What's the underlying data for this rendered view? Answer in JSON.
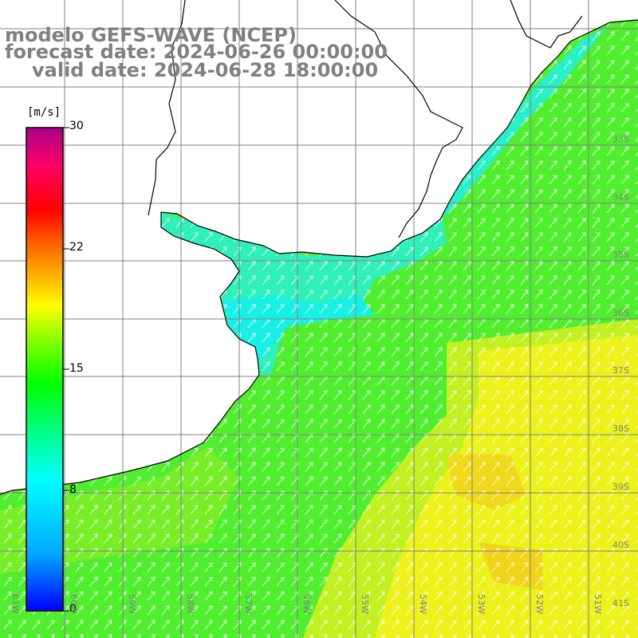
{
  "title": {
    "line1": "modelo GEFS-WAVE (NCEP)",
    "line2": "forecast date: 2024-06-26 00:00:00",
    "line3": "valid date: 2024-06-28 18:00:00"
  },
  "colorbar": {
    "unit": "[m/s]",
    "ticks": [
      "30",
      "22",
      "15",
      "8",
      "0"
    ],
    "tick_values": [
      30,
      22,
      15,
      8,
      0
    ],
    "min": 0,
    "max": 30,
    "colors": [
      "#0000ff",
      "#00aaff",
      "#00ffff",
      "#00ff88",
      "#00ff00",
      "#88ff00",
      "#ffff00",
      "#ffaa00",
      "#ff5500",
      "#ff0000",
      "#ff0066",
      "#cc0088",
      "#aa0088"
    ]
  },
  "axes": {
    "lon_labels": [
      "61W",
      "60W",
      "59W",
      "58W",
      "57W",
      "56W",
      "55W",
      "54W",
      "53W",
      "52W",
      "51W"
    ],
    "lat_labels": [
      "33S",
      "34S",
      "35S",
      "36S",
      "37S",
      "38S",
      "39S",
      "40S",
      "41S"
    ]
  },
  "field": {
    "variable": "wind speed with direction arrows",
    "arrow_direction": "towards north-east",
    "coastline_color": "#000000",
    "land_color": "#ffffff",
    "gridline_color": "#808080"
  }
}
